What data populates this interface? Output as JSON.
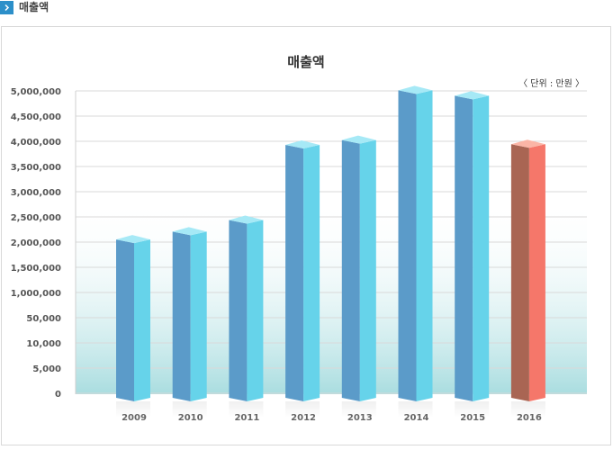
{
  "header": {
    "title": "매출액"
  },
  "chart_data": {
    "type": "bar",
    "title": "매출액",
    "unit": "〈 단위 : 만원 〉",
    "categories": [
      "2009",
      "2010",
      "2011",
      "2012",
      "2013",
      "2014",
      "2015",
      "2016"
    ],
    "values": [
      2550000,
      2680000,
      2870000,
      4110000,
      4190000,
      5010000,
      4920000,
      4120000
    ],
    "ytick_labels": [
      "5,000,000",
      "4,500,000",
      "4,000,000",
      "3,500,000",
      "3,000,000",
      "2,500,000",
      "2,000,000",
      "1,500,000",
      "1,000,000",
      "50,000",
      "10,000",
      "5,000",
      "0"
    ],
    "ylim": [
      0,
      6000000
    ],
    "grid": true,
    "colors": {
      "bar_front": "#5b9bc9",
      "bar_side": "#66d3ea",
      "bar_top": "#a6e9f6",
      "highlight_front": "#a96553",
      "highlight_side": "#f5776a",
      "highlight_top": "#fbb5a6",
      "grid": "#d9d9d9",
      "axis_text": "#555555"
    }
  }
}
